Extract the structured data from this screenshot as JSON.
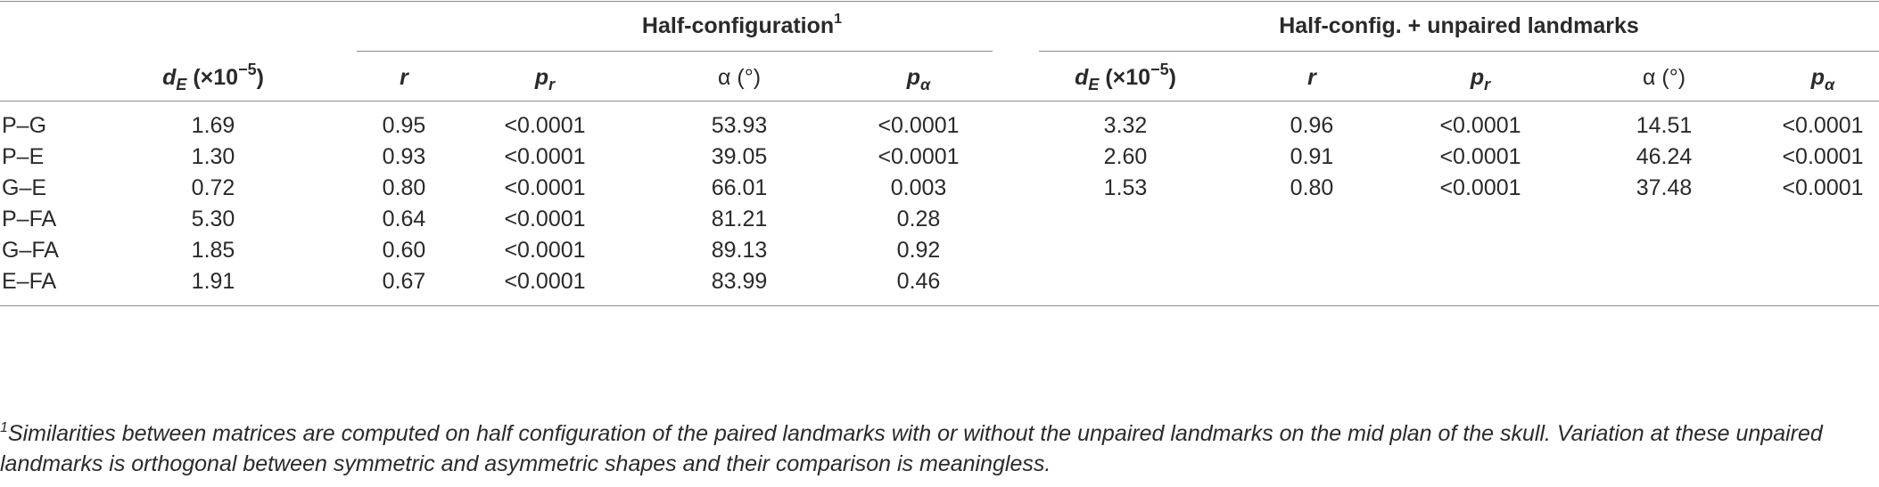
{
  "groups": {
    "half": {
      "label": "Half-configuration",
      "note": "1"
    },
    "half_unpaired": {
      "label": "Half-config. + unpaired landmarks"
    }
  },
  "headers": {
    "dE_base": "d",
    "dE_sub": "E",
    "dE_unit_open": " (×10",
    "dE_unit_exp": "−5",
    "dE_unit_close": ")",
    "r": "r",
    "pr_base": "p",
    "pr_sub": "r",
    "alpha": "α (°)",
    "palpha_base": "p",
    "palpha_sub": "α"
  },
  "rows": [
    {
      "label": "P–G",
      "half": [
        "1.69",
        "0.95",
        "<0.0001",
        "53.93",
        "<0.0001"
      ],
      "unp": [
        "3.32",
        "0.96",
        "<0.0001",
        "14.51",
        "<0.0001"
      ]
    },
    {
      "label": "P–E",
      "half": [
        "1.30",
        "0.93",
        "<0.0001",
        "39.05",
        "<0.0001"
      ],
      "unp": [
        "2.60",
        "0.91",
        "<0.0001",
        "46.24",
        "<0.0001"
      ]
    },
    {
      "label": "G–E",
      "half": [
        "0.72",
        "0.80",
        "<0.0001",
        "66.01",
        "0.003"
      ],
      "unp": [
        "1.53",
        "0.80",
        "<0.0001",
        "37.48",
        "<0.0001"
      ]
    },
    {
      "label": "P–FA",
      "half": [
        "5.30",
        "0.64",
        "<0.0001",
        "81.21",
        "0.28"
      ],
      "unp": [
        "",
        "",
        "",
        "",
        ""
      ]
    },
    {
      "label": "G–FA",
      "half": [
        "1.85",
        "0.60",
        "<0.0001",
        "89.13",
        "0.92"
      ],
      "unp": [
        "",
        "",
        "",
        "",
        ""
      ]
    },
    {
      "label": "E–FA",
      "half": [
        "1.91",
        "0.67",
        "<0.0001",
        "83.99",
        "0.46"
      ],
      "unp": [
        "",
        "",
        "",
        "",
        ""
      ]
    }
  ],
  "footnote": {
    "mark": "1",
    "text": "Similarities between matrices are computed on half configuration of the paired landmarks with or without the unpaired landmarks on the mid plan of the skull. Variation at these unpaired landmarks is orthogonal between symmetric and asymmetric shapes and their comparison is meaningless."
  }
}
